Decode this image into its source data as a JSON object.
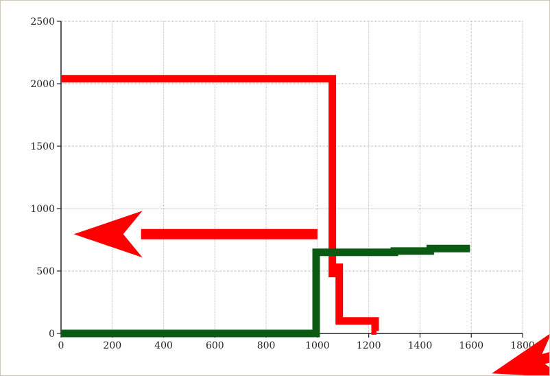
{
  "chart_data": {
    "type": "line",
    "title": "",
    "xlabel": "",
    "ylabel": "",
    "xlim": [
      0,
      1800
    ],
    "ylim": [
      0,
      2500
    ],
    "x_ticks": [
      "0",
      "200",
      "400",
      "600",
      "800",
      "1000",
      "1200",
      "1400",
      "1600",
      "1800"
    ],
    "y_ticks": [
      "0",
      "500",
      "1000",
      "1500",
      "2000",
      "2500"
    ],
    "grid": true,
    "legend": "none",
    "series": [
      {
        "color": "#ff0000",
        "step": true,
        "points": [
          [
            0,
            2040
          ],
          [
            1058,
            2040
          ],
          [
            1058,
            480
          ],
          [
            1075,
            480
          ],
          [
            1075,
            530
          ],
          [
            1085,
            530
          ],
          [
            1085,
            100
          ],
          [
            1225,
            100
          ],
          [
            1225,
            20
          ],
          [
            1230,
            20
          ]
        ]
      },
      {
        "color": "#0b5a14",
        "step": true,
        "points": [
          [
            0,
            0
          ],
          [
            995,
            0
          ],
          [
            995,
            650
          ],
          [
            1300,
            650
          ],
          [
            1300,
            660
          ],
          [
            1440,
            660
          ],
          [
            1440,
            680
          ],
          [
            1595,
            680
          ]
        ]
      }
    ],
    "annotations": [
      {
        "type": "arrow",
        "color": "#ff0000",
        "from": [
          1000,
          795
        ],
        "to": [
          50,
          795
        ]
      },
      {
        "type": "arrow-partial",
        "color": "#ff0000",
        "from": [
          1820,
          -240
        ],
        "to": [
          1680,
          -320
        ]
      }
    ]
  }
}
